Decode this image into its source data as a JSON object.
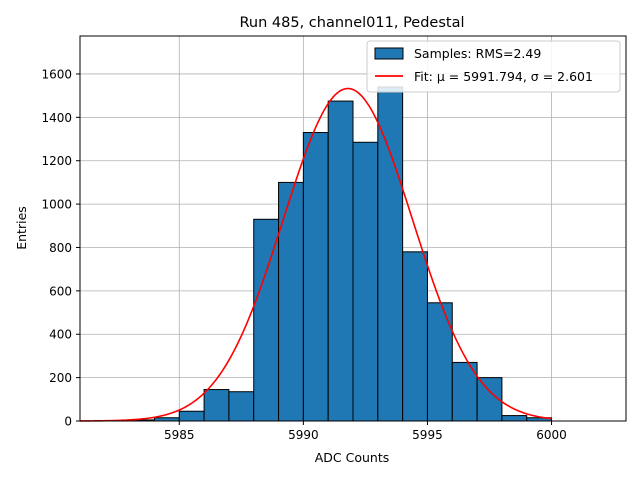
{
  "chart_data": {
    "type": "bar",
    "title": "Run 485, channel011, Pedestal",
    "xlabel": "ADC Counts",
    "ylabel": "Entries",
    "xlim": [
      5981,
      6003
    ],
    "ylim": [
      0,
      1775
    ],
    "x_ticks": [
      5985,
      5990,
      5995,
      6000
    ],
    "y_ticks": [
      0,
      200,
      400,
      600,
      800,
      1000,
      1200,
      1400,
      1600
    ],
    "grid": true,
    "legend_position": "top-right",
    "bins": {
      "edges": [
        5983,
        5984,
        5985,
        5986,
        5987,
        5988,
        5989,
        5990,
        5991,
        5992,
        5993,
        5994,
        5995,
        5996,
        5997,
        5998,
        5999,
        6000
      ],
      "values": [
        5,
        15,
        45,
        145,
        135,
        930,
        1100,
        1330,
        1475,
        1285,
        1540,
        780,
        545,
        270,
        200,
        25,
        15
      ],
      "color": "#1f77b4",
      "edge_color": "#000000"
    },
    "series": [
      {
        "name": "Samples: RMS=2.49",
        "kind": "histogram",
        "color": "#1f77b4"
      },
      {
        "name": "Fit: μ = 5991.794, σ = 2.601",
        "kind": "line",
        "color": "#ff0000",
        "fit": {
          "mu": 5991.794,
          "sigma": 2.601,
          "amplitude": 1533,
          "x_range": [
            5981,
            6000
          ]
        }
      }
    ]
  }
}
